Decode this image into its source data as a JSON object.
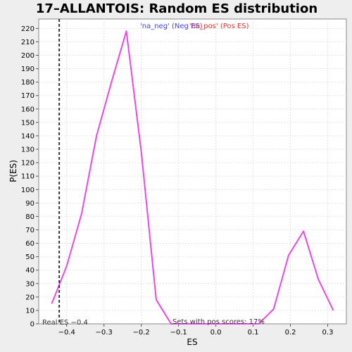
{
  "chart_data": {
    "type": "line",
    "title": "17–ALLANTOIS: Random ES distribution",
    "xlabel": "ES",
    "ylabel": "P(ES)",
    "xlim": [
      -0.475,
      0.35
    ],
    "ylim": [
      0,
      227
    ],
    "x_ticks": [
      -0.4,
      -0.3,
      -0.2,
      -0.1,
      0.0,
      0.1,
      0.2,
      0.3
    ],
    "x_tick_labels": [
      "−0.4",
      "−0.3",
      "−0.2",
      "−0.1",
      "0.0",
      "0.1",
      "0.2",
      "0.3"
    ],
    "y_ticks": [
      0,
      10,
      20,
      30,
      40,
      50,
      60,
      70,
      80,
      90,
      100,
      110,
      120,
      130,
      140,
      150,
      160,
      170,
      180,
      190,
      200,
      210,
      220
    ],
    "grid": true,
    "legend": {
      "placement": "top",
      "entries": [
        {
          "label": "'na_neg' (Neg ES)",
          "color": "#4444dd"
        },
        {
          "label": "'na_pos' (Pos ES)",
          "color": "#dd3333"
        }
      ]
    },
    "series": [
      {
        "color": "#ee44ee",
        "x": [
          -0.44,
          -0.4,
          -0.36,
          -0.32,
          -0.28,
          -0.24,
          -0.2,
          -0.16,
          -0.12,
          -0.08,
          -0.04,
          0.0,
          0.04,
          0.08,
          0.115,
          0.155,
          0.195,
          0.235,
          0.275,
          0.315
        ],
        "y": [
          15,
          43,
          82,
          140,
          180,
          218,
          128,
          18,
          0,
          0,
          0,
          0,
          0,
          0,
          0,
          11,
          51,
          69,
          33,
          10
        ]
      }
    ],
    "vline": {
      "x": -0.42,
      "style": "dashed",
      "color": "#333333"
    },
    "annotations": {
      "real_es": "Real ES −0.4",
      "pos_scores": "Sets with pos scores: 17%"
    }
  }
}
